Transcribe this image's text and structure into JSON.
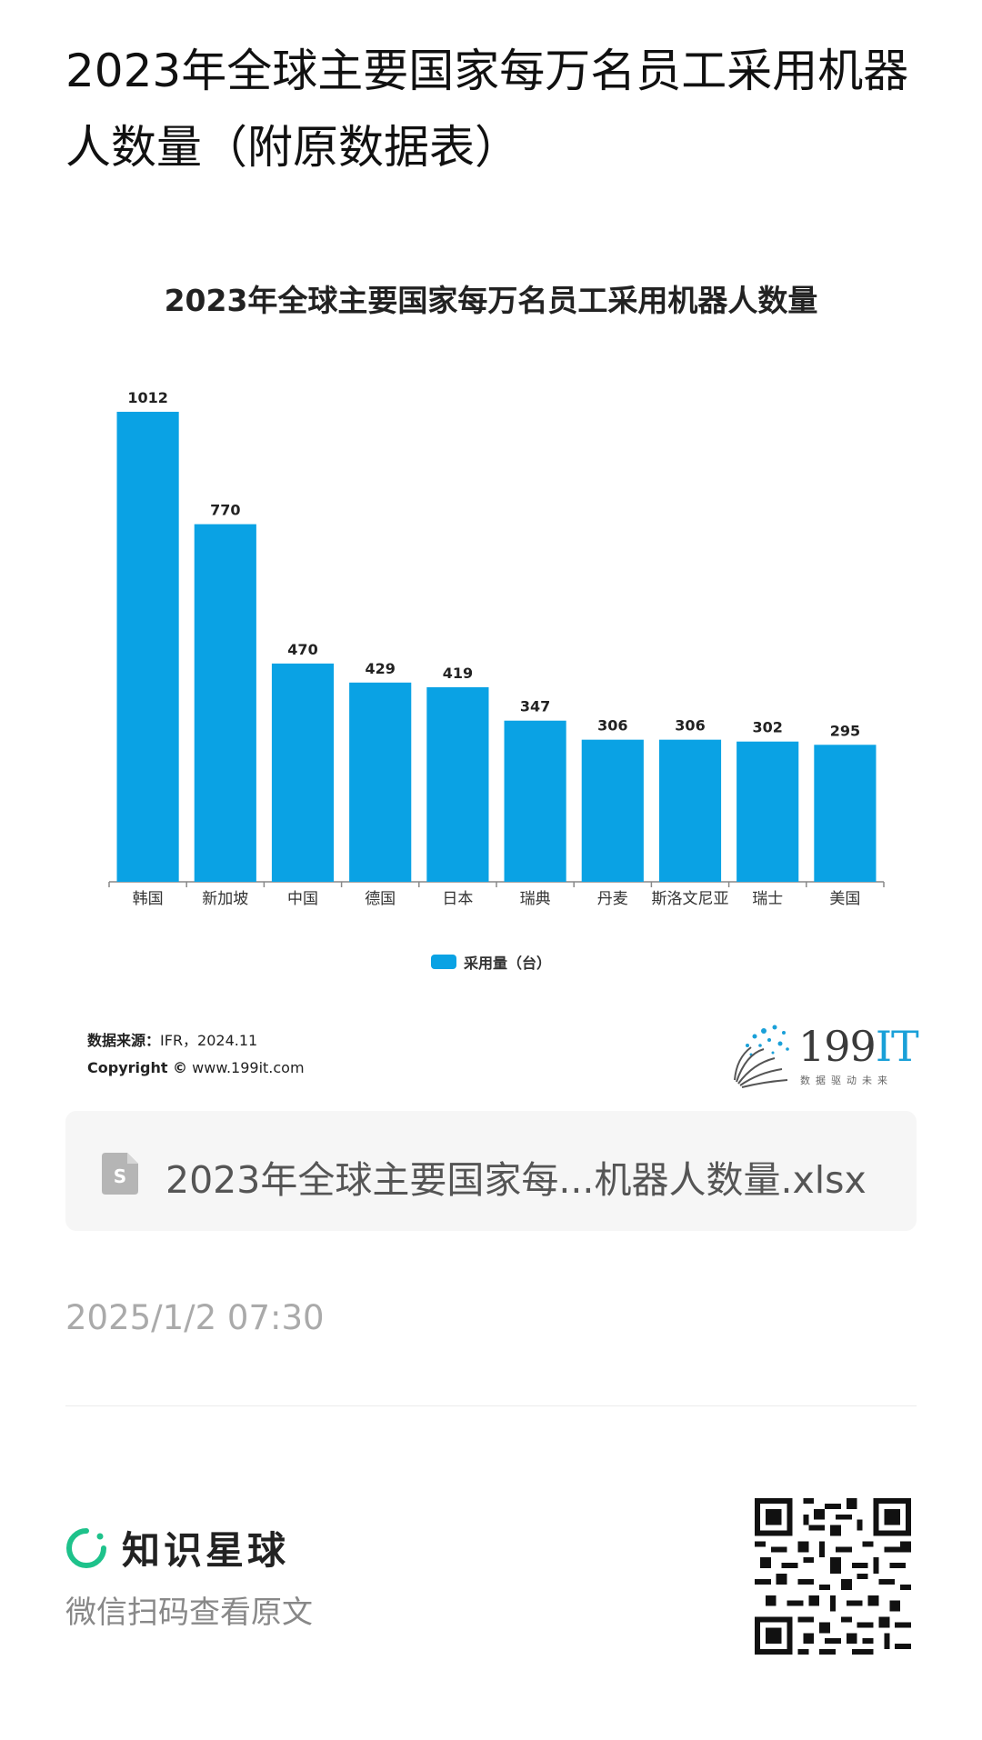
{
  "page": {
    "title": "2023年全球主要国家每万名员工采用机器人数量（附原数据表）"
  },
  "chart_data": {
    "type": "bar",
    "title": "2023年全球主要国家每万名员工采用机器人数量",
    "categories": [
      "韩国",
      "新加坡",
      "中国",
      "德国",
      "日本",
      "瑞典",
      "丹麦",
      "斯洛文尼亚",
      "瑞士",
      "美国"
    ],
    "series": [
      {
        "name": "采用量（台）",
        "values": [
          1012,
          770,
          470,
          429,
          419,
          347,
          306,
          306,
          302,
          295
        ]
      }
    ],
    "ylim": [
      0,
      1100
    ],
    "grid": false,
    "legend": "bottom-center",
    "color": "#0aa2e4"
  },
  "source": {
    "label": "数据来源：",
    "value": "IFR，2024.11",
    "copyright_label": "Copyright ©",
    "copyright_value": "www.199it.com"
  },
  "logo": {
    "text_main": "199",
    "text_accent": "IT",
    "tagline": "数据驱动未来"
  },
  "attachment": {
    "filename": "2023年全球主要国家每...机器人数量.xlsx",
    "icon": "spreadsheet-file-icon"
  },
  "meta": {
    "date": "2025/1/2 07:30"
  },
  "footer": {
    "brand_name": "知识星球",
    "scan_text": "微信扫码查看原文",
    "qr_icon": "qr-code-icon"
  }
}
